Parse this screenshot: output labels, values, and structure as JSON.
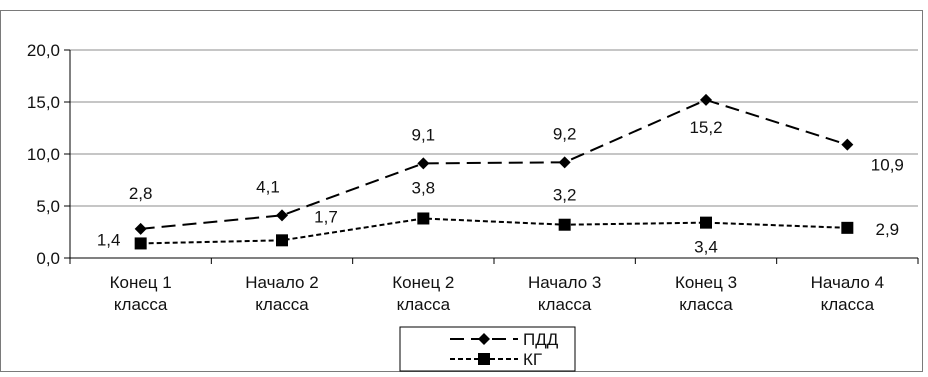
{
  "chart_data": {
    "type": "line",
    "categories": [
      [
        "Конец 1",
        "класса"
      ],
      [
        "Начало 2",
        "класса"
      ],
      [
        "Конец 2",
        "класса"
      ],
      [
        "Начало 3",
        "класса"
      ],
      [
        "Конец 3",
        "класса"
      ],
      [
        "Начало 4",
        "класса"
      ]
    ],
    "series": [
      {
        "name": "ПДД",
        "values": [
          2.8,
          4.1,
          9.1,
          9.2,
          15.2,
          10.9
        ],
        "labels": [
          "2,8",
          "4,1",
          "9,1",
          "9,2",
          "15,2",
          "10,9"
        ],
        "marker": "diamond",
        "dash": "long-dash",
        "color": "#000000"
      },
      {
        "name": "КГ",
        "values": [
          1.4,
          1.7,
          3.8,
          3.2,
          3.4,
          2.9
        ],
        "labels": [
          "1,4",
          "1,7",
          "3,8",
          "3,2",
          "3,4",
          "2,9"
        ],
        "marker": "square",
        "dash": "short-dash",
        "color": "#000000"
      }
    ],
    "y_ticks": [
      {
        "value": 0,
        "label": "0,0"
      },
      {
        "value": 5,
        "label": "5,0"
      },
      {
        "value": 10,
        "label": "10,0"
      },
      {
        "value": 15,
        "label": "15,0"
      },
      {
        "value": 20,
        "label": "20,0"
      }
    ],
    "ylim": [
      0,
      20
    ],
    "grid": true,
    "legend_position": "bottom-center",
    "title": "",
    "xlabel": "",
    "ylabel": ""
  }
}
